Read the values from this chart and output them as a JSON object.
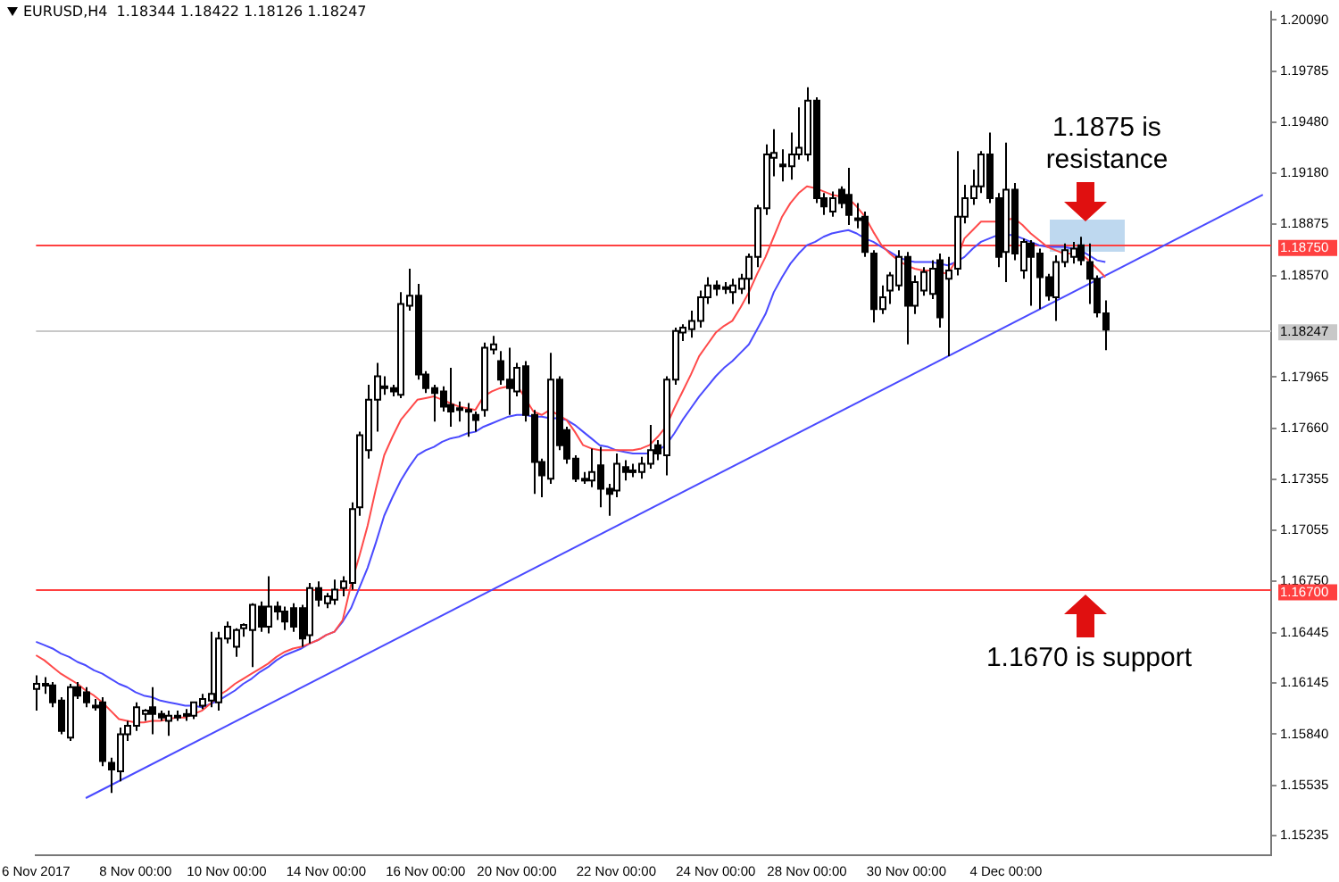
{
  "chart_data": {
    "type": "candlestick",
    "title": "EURUSD,H4  1.18344 1.18422 1.18126 1.18247",
    "categories": [
      "6 Nov 2017",
      null,
      null,
      null,
      null,
      null,
      null,
      null,
      null,
      null,
      null,
      null,
      "8 Nov 00:00",
      null,
      null,
      null,
      null,
      null,
      null,
      null,
      null,
      null,
      null,
      "10 Nov 00:00",
      null,
      null,
      null,
      null,
      null,
      null,
      null,
      null,
      null,
      null,
      null,
      "14 Nov 00:00",
      null,
      null,
      null,
      null,
      null,
      null,
      null,
      null,
      null,
      null,
      null,
      "16 Nov 00:00",
      null,
      null,
      null,
      null,
      null,
      null,
      null,
      null,
      null,
      null,
      "20 Nov 00:00",
      null,
      null,
      null,
      null,
      null,
      null,
      null,
      null,
      null,
      null,
      null,
      "22 Nov 00:00",
      null,
      null,
      null,
      null,
      null,
      null,
      null,
      null,
      null,
      null,
      null,
      "24 Nov 00:00",
      null,
      null,
      null,
      null,
      null,
      null,
      null,
      null,
      null,
      null,
      "28 Nov 00:00",
      null,
      null,
      null,
      null,
      null,
      null,
      null,
      null,
      null,
      null,
      null,
      "30 Nov 00:00",
      null,
      null,
      null,
      null,
      null,
      null,
      null,
      null,
      null,
      null,
      null,
      "4 Dec 00:00",
      null,
      null,
      null,
      null,
      null,
      null,
      null,
      null,
      null,
      null,
      null,
      null,
      null,
      null,
      null,
      null,
      null,
      null,
      null,
      null,
      null,
      null,
      null,
      null,
      null,
      null,
      null,
      null,
      null,
      null,
      null,
      null
    ],
    "ohlc": [
      [
        1.1611,
        1.1619,
        1.1598,
        1.1614
      ],
      [
        1.1614,
        1.1618,
        1.1608,
        1.1613
      ],
      [
        1.1613,
        1.1615,
        1.16,
        1.1603
      ],
      [
        1.1604,
        1.1606,
        1.1584,
        1.1586
      ],
      [
        1.1582,
        1.1614,
        1.158,
        1.1612
      ],
      [
        1.1612,
        1.1615,
        1.1605,
        1.1607
      ],
      [
        1.1609,
        1.1612,
        1.16,
        1.1603
      ],
      [
        1.1601,
        1.1605,
        1.1598,
        1.1601
      ],
      [
        1.1603,
        1.1606,
        1.1565,
        1.1568
      ],
      [
        1.1567,
        1.157,
        1.1549,
        1.1563
      ],
      [
        1.1562,
        1.1588,
        1.1556,
        1.1584
      ],
      [
        1.1584,
        1.1592,
        1.158,
        1.1589
      ],
      [
        1.1589,
        1.1603,
        1.1586,
        1.16
      ],
      [
        1.1596,
        1.1599,
        1.1592,
        1.1598
      ],
      [
        1.16,
        1.1612,
        1.1584,
        1.1596
      ],
      [
        1.1596,
        1.1598,
        1.1592,
        1.1594
      ],
      [
        1.1592,
        1.1598,
        1.1583,
        1.1595
      ],
      [
        1.1595,
        1.1598,
        1.1592,
        1.1595
      ],
      [
        1.1595,
        1.1599,
        1.1592,
        1.1596
      ],
      [
        1.1595,
        1.1603,
        1.1593,
        1.1603
      ],
      [
        1.1601,
        1.1608,
        1.1599,
        1.1605
      ],
      [
        1.1604,
        1.1645,
        1.16,
        1.1608
      ],
      [
        1.1603,
        1.1645,
        1.1598,
        1.1641
      ],
      [
        1.1641,
        1.1651,
        1.1638,
        1.1648
      ],
      [
        1.1636,
        1.1647,
        1.163,
        1.1646
      ],
      [
        1.1647,
        1.165,
        1.1642,
        1.1649
      ],
      [
        1.1646,
        1.1662,
        1.1624,
        1.1661
      ],
      [
        1.166,
        1.1663,
        1.1645,
        1.1648
      ],
      [
        1.1648,
        1.1678,
        1.1644,
        1.166
      ],
      [
        1.166,
        1.1663,
        1.1652,
        1.1657
      ],
      [
        1.1657,
        1.166,
        1.1646,
        1.1651
      ],
      [
        1.1659,
        1.1662,
        1.1645,
        1.1648
      ],
      [
        1.1659,
        1.1661,
        1.1636,
        1.1641
      ],
      [
        1.1643,
        1.1674,
        1.1638,
        1.1671
      ],
      [
        1.1671,
        1.1675,
        1.166,
        1.1664
      ],
      [
        1.1662,
        1.1668,
        1.1659,
        1.1666
      ],
      [
        1.1664,
        1.1676,
        1.1661,
        1.167
      ],
      [
        1.1671,
        1.1678,
        1.1666,
        1.1675
      ],
      [
        1.1674,
        1.1722,
        1.167,
        1.1718
      ],
      [
        1.1719,
        1.1764,
        1.1714,
        1.1762
      ],
      [
        1.1753,
        1.1792,
        1.1748,
        1.1783
      ],
      [
        1.1783,
        1.1805,
        1.1764,
        1.1797
      ],
      [
        1.179,
        1.1797,
        1.1786,
        1.1791
      ],
      [
        1.179,
        1.1792,
        1.1785,
        1.1788
      ],
      [
        1.1786,
        1.1847,
        1.1784,
        1.184
      ],
      [
        1.1839,
        1.1861,
        1.1836,
        1.1845
      ],
      [
        1.1845,
        1.1852,
        1.1795,
        1.1798
      ],
      [
        1.1798,
        1.18,
        1.1787,
        1.179
      ],
      [
        1.179,
        1.1792,
        1.177,
        1.1787
      ],
      [
        1.1788,
        1.1791,
        1.1776,
        1.1779
      ],
      [
        1.178,
        1.1802,
        1.1767,
        1.1776
      ],
      [
        1.1778,
        1.1782,
        1.177,
        1.1777
      ],
      [
        1.1776,
        1.1781,
        1.1761,
        1.1777
      ],
      [
        1.1774,
        1.1776,
        1.1764,
        1.1771
      ],
      [
        1.1777,
        1.1817,
        1.1773,
        1.1814
      ],
      [
        1.1813,
        1.1821,
        1.181,
        1.1816
      ],
      [
        1.1806,
        1.1812,
        1.1792,
        1.1795
      ],
      [
        1.1795,
        1.1814,
        1.1774,
        1.179
      ],
      [
        1.1788,
        1.1805,
        1.1785,
        1.1802
      ],
      [
        1.1803,
        1.1806,
        1.177,
        1.1774
      ],
      [
        1.1774,
        1.1777,
        1.1727,
        1.1746
      ],
      [
        1.1746,
        1.1748,
        1.1725,
        1.1738
      ],
      [
        1.1736,
        1.1811,
        1.1733,
        1.1795
      ],
      [
        1.1795,
        1.1797,
        1.1753,
        1.1756
      ],
      [
        1.1765,
        1.1767,
        1.1745,
        1.1748
      ],
      [
        1.1748,
        1.175,
        1.1734,
        1.1736
      ],
      [
        1.1736,
        1.174,
        1.1733,
        1.1735
      ],
      [
        1.1735,
        1.1754,
        1.1731,
        1.174
      ],
      [
        1.1744,
        1.1755,
        1.1719,
        1.173
      ],
      [
        1.173,
        1.1733,
        1.1714,
        1.1727
      ],
      [
        1.1729,
        1.1751,
        1.1725,
        1.1745
      ],
      [
        1.1743,
        1.1747,
        1.1735,
        1.174
      ],
      [
        1.1741,
        1.1745,
        1.1737,
        1.1741
      ],
      [
        1.174,
        1.1749,
        1.1736,
        1.1745
      ],
      [
        1.1745,
        1.1768,
        1.1742,
        1.1753
      ],
      [
        1.1756,
        1.1759,
        1.1747,
        1.1751
      ],
      [
        1.175,
        1.1797,
        1.1738,
        1.1795
      ],
      [
        1.1795,
        1.1826,
        1.1792,
        1.1824
      ],
      [
        1.1823,
        1.1828,
        1.1818,
        1.1826
      ],
      [
        1.1825,
        1.1836,
        1.182,
        1.183
      ],
      [
        1.183,
        1.1848,
        1.1826,
        1.1844
      ],
      [
        1.1844,
        1.1856,
        1.184,
        1.1851
      ],
      [
        1.1851,
        1.1854,
        1.1845,
        1.1849
      ],
      [
        1.185,
        1.1853,
        1.1846,
        1.185
      ],
      [
        1.1847,
        1.1855,
        1.184,
        1.1851
      ],
      [
        1.1849,
        1.1858,
        1.1846,
        1.1855
      ],
      [
        1.1855,
        1.187,
        1.184,
        1.1868
      ],
      [
        1.1868,
        1.1899,
        1.1862,
        1.1897
      ],
      [
        1.1897,
        1.1935,
        1.1893,
        1.1929
      ],
      [
        1.1927,
        1.1944,
        1.1916,
        1.193
      ],
      [
        1.1923,
        1.1932,
        1.1913,
        1.1923
      ],
      [
        1.1922,
        1.1942,
        1.1914,
        1.1929
      ],
      [
        1.1929,
        1.1957,
        1.1926,
        1.1933
      ],
      [
        1.1929,
        1.1969,
        1.1925,
        1.1961
      ],
      [
        1.1961,
        1.1963,
        1.19,
        1.1903
      ],
      [
        1.1903,
        1.1906,
        1.1893,
        1.1898
      ],
      [
        1.1895,
        1.1907,
        1.1892,
        1.1903
      ],
      [
        1.1908,
        1.191,
        1.1897,
        1.19
      ],
      [
        1.1905,
        1.1921,
        1.1887,
        1.1893
      ],
      [
        1.189,
        1.19,
        1.1885,
        1.1891
      ],
      [
        1.1892,
        1.1895,
        1.1868,
        1.1871
      ],
      [
        1.187,
        1.1872,
        1.1829,
        1.1837
      ],
      [
        1.1837,
        1.1851,
        1.1834,
        1.1844
      ],
      [
        1.1848,
        1.1859,
        1.184,
        1.1857
      ],
      [
        1.1851,
        1.1872,
        1.1848,
        1.1868
      ],
      [
        1.1868,
        1.1871,
        1.1816,
        1.1839
      ],
      [
        1.1839,
        1.1857,
        1.1834,
        1.1853
      ],
      [
        1.1848,
        1.1862,
        1.1845,
        1.1859
      ],
      [
        1.1846,
        1.1866,
        1.1843,
        1.1861
      ],
      [
        1.1866,
        1.187,
        1.1826,
        1.1832
      ],
      [
        1.1855,
        1.1868,
        1.1809,
        1.186
      ],
      [
        1.1861,
        1.1931,
        1.1857,
        1.1892
      ],
      [
        1.1892,
        1.1911,
        1.1888,
        1.1903
      ],
      [
        1.1903,
        1.192,
        1.1899,
        1.191
      ],
      [
        1.191,
        1.1931,
        1.1906,
        1.1929
      ],
      [
        1.1929,
        1.1942,
        1.19,
        1.1903
      ],
      [
        1.1903,
        1.1906,
        1.1862,
        1.1868
      ],
      [
        1.1871,
        1.1936,
        1.1853,
        1.1908
      ],
      [
        1.1908,
        1.1912,
        1.1866,
        1.187
      ],
      [
        1.186,
        1.1879,
        1.1855,
        1.1877
      ],
      [
        1.1876,
        1.1878,
        1.1839,
        1.1868
      ],
      [
        1.187,
        1.1873,
        1.1837,
        1.1856
      ],
      [
        1.1856,
        1.1858,
        1.1842,
        1.1845
      ],
      [
        1.1844,
        1.1869,
        1.183,
        1.1865
      ],
      [
        1.1865,
        1.1876,
        1.1862,
        1.1872
      ],
      [
        1.1868,
        1.1877,
        1.1864,
        1.1873
      ],
      [
        1.1875,
        1.188,
        1.1863,
        1.1866
      ],
      [
        1.1865,
        1.1876,
        1.184,
        1.1855
      ],
      [
        1.1855,
        1.1857,
        1.1832,
        1.1835
      ],
      [
        1.18344,
        1.18422,
        1.18126,
        1.18247
      ],
      null,
      null,
      null,
      null,
      null,
      null,
      null,
      null,
      null,
      null,
      null,
      null,
      null,
      null,
      null,
      null,
      null,
      null,
      null,
      null
    ],
    "ylim": [
      1.1512,
      1.2014
    ],
    "yticks": [
      {
        "value": 1.2009,
        "label": "1.20090"
      },
      {
        "value": 1.19785,
        "label": "1.19785"
      },
      {
        "value": 1.1948,
        "label": "1.19480"
      },
      {
        "value": 1.1918,
        "label": "1.19180"
      },
      {
        "value": 1.18875,
        "label": "1.18875"
      },
      {
        "value": 1.1857,
        "label": "1.18570"
      },
      {
        "value": 1.17965,
        "label": "1.17965"
      },
      {
        "value": 1.1766,
        "label": "1.17660"
      },
      {
        "value": 1.17355,
        "label": "1.17355"
      },
      {
        "value": 1.17055,
        "label": "1.17055"
      },
      {
        "value": 1.1675,
        "label": "1.16750"
      },
      {
        "value": 1.16445,
        "label": "1.16445"
      },
      {
        "value": 1.16145,
        "label": "1.16145"
      },
      {
        "value": 1.1584,
        "label": "1.15840"
      },
      {
        "value": 1.15535,
        "label": "1.15535"
      },
      {
        "value": 1.15235,
        "label": "1.15235"
      }
    ],
    "grid": false,
    "legend": false,
    "series": [
      {
        "type": "line",
        "color": "#ff4a4a",
        "values": [
          1.1631,
          1.1628,
          1.1624,
          1.162,
          1.1617,
          1.1614,
          1.161,
          1.1607,
          1.1603,
          1.1598,
          1.1593,
          1.1592,
          1.1591,
          1.1591,
          1.1592,
          1.1592,
          1.1593,
          1.1594,
          1.1594,
          1.1596,
          1.1598,
          1.1602,
          1.1607,
          1.161,
          1.1614,
          1.1617,
          1.162,
          1.1623,
          1.1626,
          1.163,
          1.1633,
          1.1635,
          1.1636,
          1.1638,
          1.164,
          1.1643,
          1.1645,
          1.1652,
          1.1673,
          1.169,
          1.1708,
          1.173,
          1.175,
          1.1761,
          1.1771,
          1.1777,
          1.1783,
          1.1784,
          1.1785,
          1.1783,
          1.1781,
          1.1779,
          1.1778,
          1.1777,
          1.1785,
          1.1788,
          1.179,
          1.1791,
          1.1792,
          1.1784,
          1.1776,
          1.1774,
          1.1777,
          1.1774,
          1.1771,
          1.1764,
          1.1756,
          1.1754,
          1.1753,
          1.1753,
          1.1753,
          1.1753,
          1.1753,
          1.1754,
          1.1756,
          1.1761,
          1.1767,
          1.1778,
          1.1788,
          1.1798,
          1.1809,
          1.1816,
          1.1823,
          1.1827,
          1.183,
          1.1838,
          1.1847,
          1.1858,
          1.1868,
          1.188,
          1.1892,
          1.19,
          1.1906,
          1.191,
          1.1909,
          1.1907,
          1.1905,
          1.1904,
          1.1903,
          1.1898,
          1.1892,
          1.1883,
          1.1875,
          1.187,
          1.1866,
          1.1863,
          1.1861,
          1.186,
          1.186,
          1.1859,
          1.1858,
          1.1866,
          1.1879,
          1.1884,
          1.1889,
          1.1889,
          1.1889,
          1.189,
          1.1891,
          1.1887,
          1.1882,
          1.1878,
          1.1874,
          1.1872,
          1.187,
          1.187,
          1.187,
          1.1866,
          1.1861,
          1.1856,
          null,
          null,
          null,
          null,
          null,
          null,
          null,
          null,
          null,
          null,
          null,
          null,
          null,
          null,
          null,
          null,
          null,
          null,
          null,
          null
        ]
      },
      {
        "type": "line",
        "color": "#4a4aff",
        "values": [
          1.1639,
          1.1637,
          1.1635,
          1.1632,
          1.163,
          1.1627,
          1.1625,
          1.1622,
          1.162,
          1.1617,
          1.1614,
          1.1612,
          1.1609,
          1.1607,
          1.1606,
          1.1604,
          1.1603,
          1.1602,
          1.1601,
          1.1601,
          1.16,
          1.1602,
          1.1604,
          1.1607,
          1.161,
          1.1614,
          1.1617,
          1.1621,
          1.1624,
          1.1628,
          1.1631,
          1.1633,
          1.1635,
          1.1638,
          1.164,
          1.1643,
          1.1645,
          1.1651,
          1.1659,
          1.1671,
          1.1683,
          1.1698,
          1.1714,
          1.1725,
          1.1735,
          1.1743,
          1.175,
          1.1753,
          1.1755,
          1.1758,
          1.176,
          1.1761,
          1.1763,
          1.1764,
          1.1767,
          1.1769,
          1.1771,
          1.1773,
          1.1774,
          1.1774,
          1.1773,
          1.1773,
          1.1772,
          1.1772,
          1.1771,
          1.1768,
          1.1764,
          1.176,
          1.1756,
          1.1755,
          1.1753,
          1.1752,
          1.1751,
          1.1751,
          1.1751,
          1.1753,
          1.1756,
          1.1763,
          1.1771,
          1.1778,
          1.1785,
          1.1791,
          1.1797,
          1.1802,
          1.1806,
          1.1811,
          1.1816,
          1.1825,
          1.1834,
          1.1847,
          1.1856,
          1.1864,
          1.187,
          1.1875,
          1.1877,
          1.188,
          1.1882,
          1.1883,
          1.1884,
          1.1882,
          1.1879,
          1.1877,
          1.1874,
          1.1871,
          1.1868,
          1.1866,
          1.1865,
          1.1865,
          1.1865,
          1.1864,
          1.1863,
          1.1865,
          1.1868,
          1.1873,
          1.1877,
          1.1879,
          1.1881,
          1.1881,
          1.1881,
          1.1879,
          1.1877,
          1.1875,
          1.1874,
          1.1874,
          1.1874,
          1.1873,
          1.1872,
          1.1869,
          1.1866,
          1.1865,
          null,
          null,
          null,
          null,
          null,
          null,
          null,
          null,
          null,
          null,
          null,
          null,
          null,
          null,
          null,
          null,
          null,
          null,
          null,
          null
        ]
      },
      {
        "type": "line",
        "color": "#4a4aff",
        "values": [
          null,
          null,
          null,
          null,
          null,
          null,
          1.1546,
          null,
          null,
          null,
          null,
          null,
          null,
          null,
          null,
          null,
          null,
          null,
          null,
          null,
          null,
          null,
          null,
          null,
          null,
          null,
          null,
          null,
          null,
          null,
          null,
          null,
          null,
          null,
          null,
          null,
          null,
          null,
          null,
          null,
          null,
          null,
          null,
          null,
          null,
          null,
          null,
          null,
          null,
          null,
          null,
          null,
          null,
          null,
          null,
          null,
          null,
          null,
          null,
          null,
          null,
          null,
          null,
          null,
          null,
          null,
          null,
          null,
          null,
          null,
          null,
          null,
          null,
          null,
          null,
          null,
          null,
          null,
          null,
          null,
          null,
          null,
          null,
          null,
          null,
          null,
          null,
          null,
          null,
          null,
          null,
          null,
          null,
          null,
          null,
          null,
          null,
          null,
          null,
          null,
          null,
          null,
          null,
          null,
          null,
          null,
          null,
          null,
          null,
          null,
          null,
          null,
          null,
          null,
          null,
          null,
          null,
          null,
          null,
          null,
          null,
          null,
          null,
          null,
          null,
          null,
          null,
          null,
          null,
          null,
          null,
          null,
          null,
          null,
          null,
          null,
          null,
          null,
          null,
          null,
          null,
          null,
          null,
          null,
          null,
          null,
          null,
          null,
          1.1905,
          null
        ]
      }
    ],
    "ref_lines": [
      {
        "axis": "y",
        "value": 1.1875,
        "label": "1.18750",
        "color": "#ff4040"
      },
      {
        "axis": "y",
        "value": 1.167,
        "label": "1.16700",
        "color": "#ff4040"
      },
      {
        "axis": "y",
        "value": 1.18247,
        "label": "1.18247",
        "color": "#c8c8c8"
      }
    ],
    "annotations": [
      "1.1875 is resistance",
      "1.1670 is support"
    ]
  }
}
